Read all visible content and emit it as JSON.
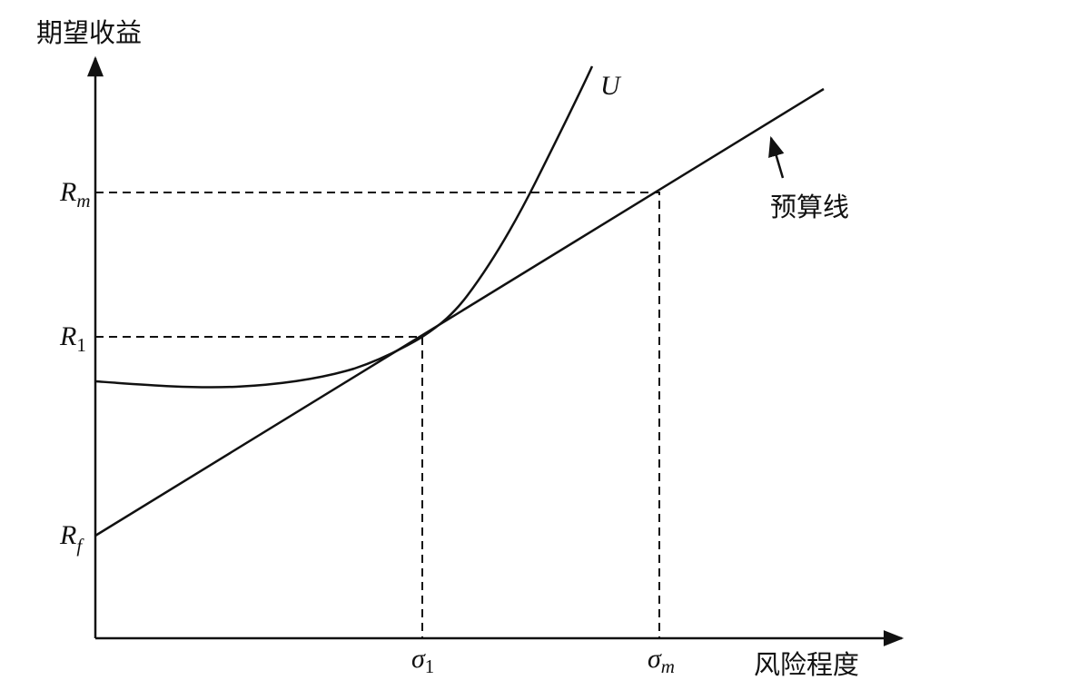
{
  "axes": {
    "y_label": "期望收益",
    "x_label": "风险程度"
  },
  "y_labels": [
    {
      "main": "R",
      "sub": "m"
    },
    {
      "main": "R",
      "sub": "1"
    },
    {
      "main": "R",
      "sub": "f"
    }
  ],
  "x_labels": [
    {
      "main": "σ",
      "sub": "1"
    },
    {
      "main": "σ",
      "sub": "m"
    }
  ],
  "curve_label": "U",
  "line_label": "预算线"
}
